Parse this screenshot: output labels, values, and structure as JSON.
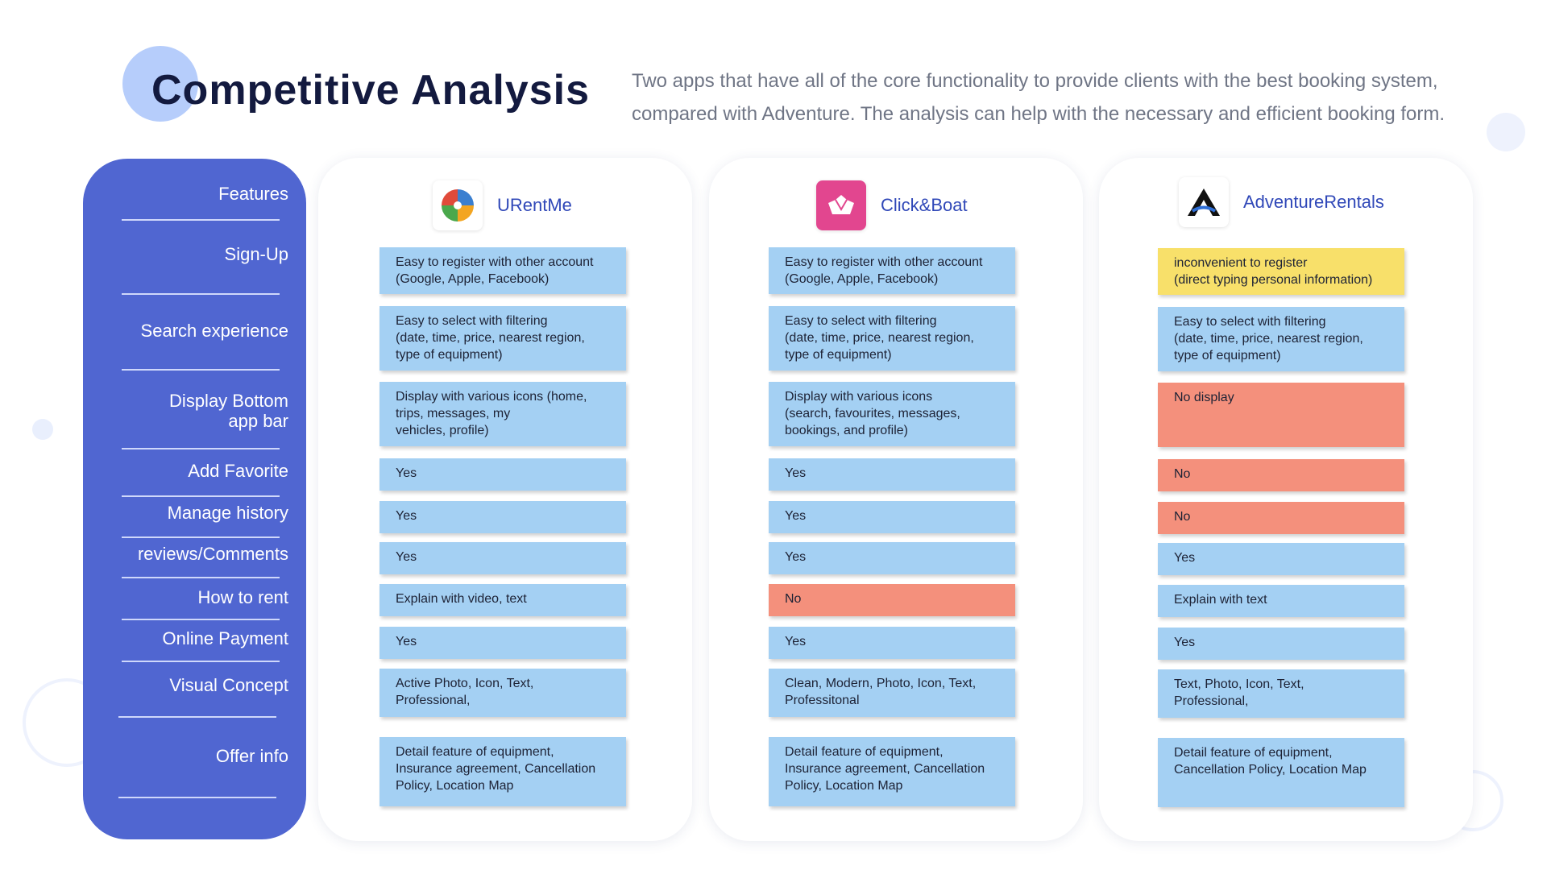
{
  "title": "Competitive Analysis",
  "intro": "Two apps that have all of the core functionality to provide clients with the best booking system, compared with Adventure. The analysis can help with the necessary and efficient booking form.",
  "colors": {
    "sidebar": "#5066d1",
    "cell_default": "#a4d0f3",
    "cell_warning": "#f8e06a",
    "cell_negative": "#f4907c",
    "accent_dot": "#b6cdfb"
  },
  "features": [
    "Features",
    "Sign-Up",
    "Search experience",
    "Display Bottom\napp bar",
    "Add Favorite",
    "Manage history",
    "reviews/Comments",
    "How to rent",
    "Online Payment",
    "Visual Concept",
    "Offer info"
  ],
  "apps": [
    {
      "name": "URentMe",
      "icon": "urentme-logo-icon",
      "cells": [
        {
          "text": "Easy to register with other account\n(Google, Apple, Facebook)",
          "status": "positive"
        },
        {
          "text": "Easy to select with filtering\n(date, time, price, nearest region,\n  type of equipment)",
          "status": "positive"
        },
        {
          "text": "Display with various icons (home,\ntrips, messages, my\nvehicles, profile)",
          "status": "positive"
        },
        {
          "text": "Yes",
          "status": "positive"
        },
        {
          "text": "Yes",
          "status": "positive"
        },
        {
          "text": "Yes",
          "status": "positive"
        },
        {
          "text": "Explain with video, text",
          "status": "positive"
        },
        {
          "text": "Yes",
          "status": "positive"
        },
        {
          "text": "Active Photo, Icon, Text,\nProfessional,",
          "status": "positive"
        },
        {
          "text": "Detail feature of equipment,\nInsurance agreement, Cancellation\nPolicy, Location Map",
          "status": "positive"
        }
      ]
    },
    {
      "name": "Click&Boat",
      "icon": "click-and-boat-logo-icon",
      "cells": [
        {
          "text": "Easy to register with other account\n(Google, Apple, Facebook)",
          "status": "positive"
        },
        {
          "text": "Easy to select with filtering\n(date, time, price, nearest region,\n  type of equipment)",
          "status": "positive"
        },
        {
          "text": "Display with various icons\n(search, favourites, messages,\nbookings, and profile)",
          "status": "positive"
        },
        {
          "text": "Yes",
          "status": "positive"
        },
        {
          "text": "Yes",
          "status": "positive"
        },
        {
          "text": "Yes",
          "status": "positive"
        },
        {
          "text": "No",
          "status": "negative"
        },
        {
          "text": "Yes",
          "status": "positive"
        },
        {
          "text": "Clean, Modern, Photo, Icon, Text,\nProfessitonal",
          "status": "positive"
        },
        {
          "text": "Detail feature of equipment,\nInsurance agreement, Cancellation\nPolicy, Location Map",
          "status": "positive"
        }
      ]
    },
    {
      "name": "AdventureRentals",
      "icon": "adventure-rentals-logo-icon",
      "cells": [
        {
          "text": "inconvenient to register\n(direct typing personal information)",
          "status": "warning"
        },
        {
          "text": "Easy to select with filtering\n(date, time, price, nearest region,\n  type of equipment)",
          "status": "positive"
        },
        {
          "text": "No display",
          "status": "negative"
        },
        {
          "text": "No",
          "status": "negative"
        },
        {
          "text": "No",
          "status": "negative"
        },
        {
          "text": "Yes",
          "status": "positive"
        },
        {
          "text": "Explain with text",
          "status": "positive"
        },
        {
          "text": "Yes",
          "status": "positive"
        },
        {
          "text": "Text, Photo, Icon, Text,\nProfessional,",
          "status": "positive"
        },
        {
          "text": "Detail feature of equipment,\nCancellation Policy, Location Map",
          "status": "positive"
        }
      ]
    }
  ]
}
